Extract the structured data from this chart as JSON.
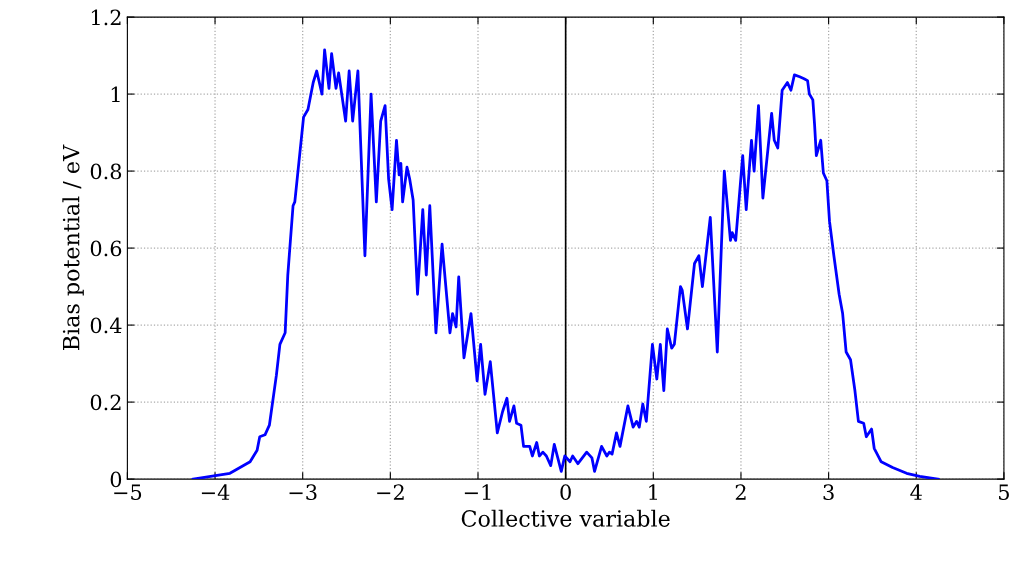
{
  "chart_data": {
    "type": "line",
    "xlabel": "Collective variable",
    "ylabel": "Bias potential / eV",
    "xlim": [
      -5,
      5
    ],
    "ylim": [
      0,
      1.2
    ],
    "xticks": [
      {
        "value": -5,
        "label": "−5"
      },
      {
        "value": -4,
        "label": "−4"
      },
      {
        "value": -3,
        "label": "−3"
      },
      {
        "value": -2,
        "label": "−2"
      },
      {
        "value": -1,
        "label": "−1"
      },
      0,
      1,
      2,
      3,
      4,
      5
    ],
    "yticks": [
      0,
      0.2,
      0.4,
      0.6,
      0.8,
      1,
      1.2
    ],
    "grid": true,
    "line_style": "solid",
    "marker": "none",
    "ref_lines": [
      {
        "axis": "x",
        "value": 0,
        "color": "#000000"
      }
    ],
    "series": [
      {
        "color": "#0000ff",
        "x": [
          -4.25,
          -3.83,
          -3.6,
          -3.52,
          -3.49,
          -3.43,
          -3.38,
          -3.3,
          -3.26,
          -3.2,
          -3.17,
          -3.11,
          -3.09,
          -2.99,
          -2.94,
          -2.88,
          -2.84,
          -2.78,
          -2.75,
          -2.7,
          -2.67,
          -2.62,
          -2.59,
          -2.51,
          -2.47,
          -2.43,
          -2.37,
          -2.29,
          -2.22,
          -2.16,
          -2.11,
          -2.06,
          -2.02,
          -1.98,
          -1.93,
          -1.9,
          -1.88,
          -1.86,
          -1.81,
          -1.78,
          -1.74,
          -1.69,
          -1.63,
          -1.59,
          -1.55,
          -1.48,
          -1.41,
          -1.32,
          -1.29,
          -1.25,
          -1.22,
          -1.16,
          -1.08,
          -1.01,
          -0.97,
          -0.92,
          -0.86,
          -0.78,
          -0.72,
          -0.67,
          -0.64,
          -0.59,
          -0.56,
          -0.51,
          -0.48,
          -0.41,
          -0.38,
          -0.33,
          -0.3,
          -0.26,
          -0.22,
          -0.17,
          -0.13,
          -0.05,
          -0.01,
          0.05,
          0.08,
          0.14,
          0.24,
          0.3,
          0.33,
          0.41,
          0.47,
          0.5,
          0.53,
          0.58,
          0.62,
          0.71,
          0.77,
          0.81,
          0.84,
          0.88,
          0.92,
          0.99,
          1.04,
          1.08,
          1.12,
          1.16,
          1.21,
          1.24,
          1.31,
          1.33,
          1.39,
          1.47,
          1.52,
          1.56,
          1.65,
          1.73,
          1.81,
          1.88,
          1.9,
          1.94,
          2.02,
          2.06,
          2.12,
          2.15,
          2.2,
          2.25,
          2.35,
          2.38,
          2.42,
          2.47,
          2.53,
          2.57,
          2.61,
          2.67,
          2.72,
          2.76,
          2.78,
          2.82,
          2.84,
          2.86,
          2.91,
          2.94,
          2.98,
          3.01,
          3.06,
          3.12,
          3.16,
          3.2,
          3.25,
          3.3,
          3.34,
          3.4,
          3.43,
          3.49,
          3.52,
          3.6,
          3.73,
          3.89,
          4.04,
          4.25
        ],
        "values": [
          0.0,
          0.015,
          0.045,
          0.075,
          0.11,
          0.115,
          0.14,
          0.27,
          0.35,
          0.38,
          0.53,
          0.71,
          0.72,
          0.94,
          0.96,
          1.03,
          1.06,
          1.0,
          1.115,
          1.015,
          1.105,
          1.015,
          1.055,
          0.93,
          1.06,
          0.93,
          1.06,
          0.58,
          1.0,
          0.72,
          0.93,
          0.97,
          0.78,
          0.7,
          0.88,
          0.79,
          0.82,
          0.72,
          0.81,
          0.78,
          0.725,
          0.48,
          0.7,
          0.53,
          0.71,
          0.38,
          0.61,
          0.38,
          0.43,
          0.395,
          0.525,
          0.315,
          0.43,
          0.255,
          0.35,
          0.22,
          0.305,
          0.12,
          0.175,
          0.21,
          0.15,
          0.19,
          0.145,
          0.14,
          0.085,
          0.085,
          0.06,
          0.095,
          0.06,
          0.07,
          0.06,
          0.035,
          0.09,
          0.02,
          0.06,
          0.045,
          0.06,
          0.04,
          0.07,
          0.055,
          0.02,
          0.085,
          0.06,
          0.07,
          0.065,
          0.12,
          0.085,
          0.19,
          0.135,
          0.15,
          0.135,
          0.195,
          0.15,
          0.35,
          0.26,
          0.35,
          0.23,
          0.39,
          0.34,
          0.35,
          0.5,
          0.49,
          0.39,
          0.56,
          0.58,
          0.5,
          0.68,
          0.33,
          0.8,
          0.62,
          0.64,
          0.62,
          0.84,
          0.7,
          0.88,
          0.8,
          0.97,
          0.73,
          0.95,
          0.88,
          0.86,
          1.01,
          1.03,
          1.01,
          1.05,
          1.045,
          1.04,
          1.035,
          1.0,
          0.985,
          0.92,
          0.84,
          0.88,
          0.795,
          0.775,
          0.67,
          0.58,
          0.48,
          0.43,
          0.33,
          0.31,
          0.23,
          0.15,
          0.145,
          0.11,
          0.13,
          0.08,
          0.045,
          0.03,
          0.015,
          0.007,
          0.0
        ]
      }
    ]
  }
}
